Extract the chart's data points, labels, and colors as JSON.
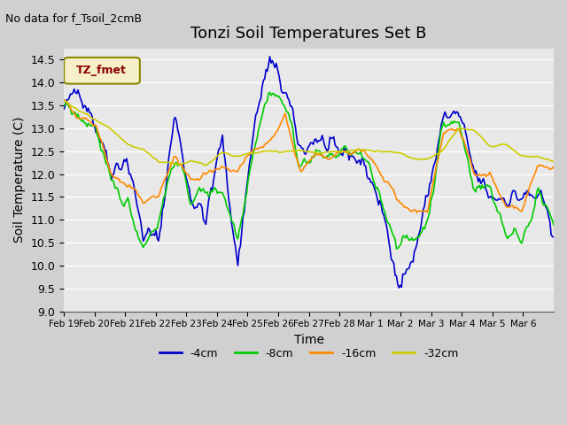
{
  "title": "Tonzi Soil Temperatures Set B",
  "subtitle": "No data for f_Tsoil_2cmB",
  "xlabel": "Time",
  "ylabel": "Soil Temperature (C)",
  "ylim": [
    9.0,
    14.75
  ],
  "yticks": [
    9.0,
    9.5,
    10.0,
    10.5,
    11.0,
    11.5,
    12.0,
    12.5,
    13.0,
    13.5,
    14.0,
    14.5
  ],
  "plot_bg_color": "#e8e8e8",
  "fig_bg_color": "#d0d0d0",
  "legend_label": "TZ_fmet",
  "legend_box_color": "#f5f0c8",
  "legend_text_color": "#8b0000",
  "line_colors": {
    "-4cm": "#0000cc",
    "-8cm": "#00cc00",
    "-16cm": "#ff8800",
    "-32cm": "#cccc00"
  },
  "x_tick_labels": [
    "Feb 19",
    "Feb 20",
    "Feb 21",
    "Feb 22",
    "Feb 23",
    "Feb 24",
    "Feb 25",
    "Feb 26",
    "Feb 27",
    "Feb 28",
    "Mar 1",
    "Mar 2",
    "Mar 3",
    "Mar 4",
    "Mar 5",
    "Mar 6"
  ],
  "n_points_per_day": 24,
  "n_days": 16
}
